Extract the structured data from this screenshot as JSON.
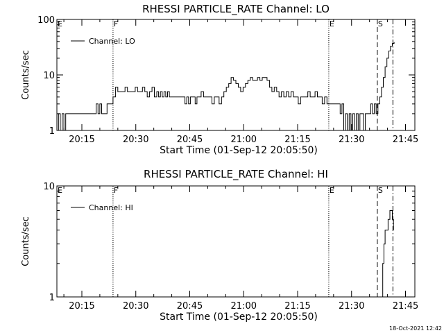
{
  "chart_data": [
    {
      "type": "line",
      "title": "RHESSI PARTICLE_RATE Channel: LO",
      "xlabel": "Start Time (01-Sep-12 20:05:50)",
      "ylabel": "Counts/sec",
      "yscale": "log",
      "ylim": [
        1,
        100
      ],
      "y_ticks": [
        "1",
        "10",
        "100"
      ],
      "x_ticks": [
        "20:15",
        "20:30",
        "20:45",
        "21:00",
        "21:15",
        "21:30",
        "21:45"
      ],
      "legend": {
        "label": "Channel: LO",
        "position": "top-left"
      },
      "markers": [
        {
          "label": "E",
          "x": "20:05:50",
          "style": "none"
        },
        {
          "label": "F",
          "x": "20:23:40",
          "style": "dotted"
        },
        {
          "label": "E",
          "x": "21:23:40",
          "style": "dotted"
        },
        {
          "label": "S",
          "x": "21:37:10",
          "style": "dashed"
        },
        {
          "label": "",
          "x": "21:41:30",
          "style": "dash-dot"
        }
      ],
      "series": [
        {
          "name": "Channel: LO",
          "points": [
            [
              "20:05:50",
              1
            ],
            [
              "20:06:20",
              2
            ],
            [
              "20:06:50",
              1
            ],
            [
              "20:07:20",
              2
            ],
            [
              "20:07:50",
              1
            ],
            [
              "20:08:30",
              2
            ],
            [
              "20:09:00",
              1
            ],
            [
              "20:09:30",
              2
            ],
            [
              "20:10:00",
              1
            ],
            [
              "20:10:30",
              2
            ],
            [
              "20:18:30",
              2
            ],
            [
              "20:19:00",
              3
            ],
            [
              "20:19:30",
              2
            ],
            [
              "20:20:00",
              3
            ],
            [
              "20:20:30",
              2
            ],
            [
              "20:21:30",
              2
            ],
            [
              "20:22:00",
              3
            ],
            [
              "20:22:30",
              3
            ],
            [
              "20:23:00",
              3
            ],
            [
              "20:23:40",
              4
            ],
            [
              "20:24:20",
              6
            ],
            [
              "20:25:00",
              5
            ],
            [
              "20:25:40",
              5
            ],
            [
              "20:26:20",
              5
            ],
            [
              "20:27:00",
              6
            ],
            [
              "20:27:40",
              5
            ],
            [
              "20:28:30",
              5
            ],
            [
              "20:29:10",
              5
            ],
            [
              "20:29:50",
              6
            ],
            [
              "20:30:30",
              5
            ],
            [
              "20:31:10",
              5
            ],
            [
              "20:31:50",
              6
            ],
            [
              "20:32:30",
              5
            ],
            [
              "20:33:10",
              4
            ],
            [
              "20:33:50",
              5
            ],
            [
              "20:34:30",
              6
            ],
            [
              "20:35:10",
              4
            ],
            [
              "20:35:50",
              5
            ],
            [
              "20:36:20",
              4
            ],
            [
              "20:36:50",
              5
            ],
            [
              "20:37:20",
              4
            ],
            [
              "20:37:50",
              5
            ],
            [
              "20:38:20",
              4
            ],
            [
              "20:38:50",
              5
            ],
            [
              "20:39:20",
              4
            ],
            [
              "20:40:00",
              4
            ],
            [
              "20:41:00",
              4
            ],
            [
              "20:42:00",
              4
            ],
            [
              "20:43:00",
              4
            ],
            [
              "20:43:40",
              3
            ],
            [
              "20:44:10",
              4
            ],
            [
              "20:44:40",
              3
            ],
            [
              "20:45:10",
              4
            ],
            [
              "20:45:50",
              4
            ],
            [
              "20:46:30",
              3
            ],
            [
              "20:47:00",
              4
            ],
            [
              "20:47:30",
              4
            ],
            [
              "20:48:10",
              5
            ],
            [
              "20:48:50",
              4
            ],
            [
              "20:49:30",
              4
            ],
            [
              "20:50:30",
              4
            ],
            [
              "20:51:10",
              3
            ],
            [
              "20:51:50",
              4
            ],
            [
              "20:52:30",
              4
            ],
            [
              "20:53:10",
              3
            ],
            [
              "20:53:50",
              4
            ],
            [
              "20:54:30",
              5
            ],
            [
              "20:55:10",
              6
            ],
            [
              "20:55:50",
              7
            ],
            [
              "20:56:30",
              9
            ],
            [
              "20:57:10",
              8
            ],
            [
              "20:57:50",
              7
            ],
            [
              "20:58:30",
              6
            ],
            [
              "20:59:10",
              5
            ],
            [
              "20:59:50",
              6
            ],
            [
              "21:00:30",
              7
            ],
            [
              "21:01:10",
              8
            ],
            [
              "21:01:50",
              9
            ],
            [
              "21:02:30",
              8
            ],
            [
              "21:03:10",
              8
            ],
            [
              "21:03:50",
              9
            ],
            [
              "21:04:30",
              8
            ],
            [
              "21:05:10",
              9
            ],
            [
              "21:05:50",
              9
            ],
            [
              "21:06:30",
              8
            ],
            [
              "21:07:10",
              6
            ],
            [
              "21:07:50",
              5
            ],
            [
              "21:08:30",
              6
            ],
            [
              "21:09:10",
              5
            ],
            [
              "21:09:50",
              4
            ],
            [
              "21:10:30",
              5
            ],
            [
              "21:11:10",
              4
            ],
            [
              "21:11:50",
              5
            ],
            [
              "21:12:30",
              4
            ],
            [
              "21:13:10",
              5
            ],
            [
              "21:13:50",
              4
            ],
            [
              "21:14:30",
              4
            ],
            [
              "21:15:10",
              3
            ],
            [
              "21:15:50",
              4
            ],
            [
              "21:16:30",
              4
            ],
            [
              "21:17:10",
              4
            ],
            [
              "21:17:50",
              5
            ],
            [
              "21:18:30",
              4
            ],
            [
              "21:19:10",
              4
            ],
            [
              "21:19:50",
              5
            ],
            [
              "21:20:30",
              4
            ],
            [
              "21:21:10",
              4
            ],
            [
              "21:21:50",
              3
            ],
            [
              "21:22:30",
              4
            ],
            [
              "21:23:10",
              3
            ],
            [
              "21:23:40",
              3
            ],
            [
              "21:24:20",
              3
            ],
            [
              "21:25:00",
              3
            ],
            [
              "21:25:40",
              3
            ],
            [
              "21:26:20",
              3
            ],
            [
              "21:26:50",
              2
            ],
            [
              "21:27:20",
              3
            ],
            [
              "21:27:50",
              1
            ],
            [
              "21:28:20",
              2
            ],
            [
              "21:28:50",
              1
            ],
            [
              "21:29:20",
              2
            ],
            [
              "21:29:50",
              1
            ],
            [
              "21:30:20",
              2
            ],
            [
              "21:30:50",
              1
            ],
            [
              "21:31:20",
              2
            ],
            [
              "21:31:50",
              1
            ],
            [
              "21:32:20",
              2
            ],
            [
              "21:32:50",
              2
            ],
            [
              "21:33:20",
              1
            ],
            [
              "21:33:50",
              2
            ],
            [
              "21:34:20",
              2
            ],
            [
              "21:34:50",
              2
            ],
            [
              "21:35:20",
              3
            ],
            [
              "21:35:50",
              2
            ],
            [
              "21:36:20",
              3
            ],
            [
              "21:36:50",
              2
            ],
            [
              "21:37:20",
              3
            ],
            [
              "21:37:50",
              4
            ],
            [
              "21:38:20",
              6
            ],
            [
              "21:38:50",
              9
            ],
            [
              "21:39:20",
              14
            ],
            [
              "21:39:50",
              20
            ],
            [
              "21:40:20",
              27
            ],
            [
              "21:40:50",
              33
            ],
            [
              "21:41:20",
              37
            ],
            [
              "21:41:50",
              39
            ]
          ]
        }
      ]
    },
    {
      "type": "line",
      "title": "RHESSI PARTICLE_RATE Channel: HI",
      "xlabel": "Start Time (01-Sep-12 20:05:50)",
      "ylabel": "Counts/sec",
      "yscale": "log",
      "ylim": [
        1,
        10
      ],
      "y_ticks": [
        "1",
        "10"
      ],
      "x_ticks": [
        "20:15",
        "20:30",
        "20:45",
        "21:00",
        "21:15",
        "21:30",
        "21:45"
      ],
      "legend": {
        "label": "Channel: HI",
        "position": "top-left"
      },
      "markers": [
        {
          "label": "E",
          "x": "20:05:50",
          "style": "none"
        },
        {
          "label": "F",
          "x": "20:23:40",
          "style": "dotted"
        },
        {
          "label": "E",
          "x": "21:23:40",
          "style": "dotted"
        },
        {
          "label": "S",
          "x": "21:37:10",
          "style": "dashed"
        },
        {
          "label": "",
          "x": "21:41:30",
          "style": "dash-dot"
        }
      ],
      "series": [
        {
          "name": "Channel: HI",
          "points": [
            [
              "21:38:10",
              1
            ],
            [
              "21:38:40",
              2
            ],
            [
              "21:39:00",
              3
            ],
            [
              "21:39:20",
              4
            ],
            [
              "21:39:50",
              4
            ],
            [
              "21:40:10",
              5
            ],
            [
              "21:40:40",
              6
            ],
            [
              "21:41:00",
              6
            ],
            [
              "21:41:20",
              5
            ],
            [
              "21:41:40",
              4
            ]
          ]
        }
      ]
    }
  ],
  "footer": {
    "date": "18-Oct-2021 12:42"
  }
}
